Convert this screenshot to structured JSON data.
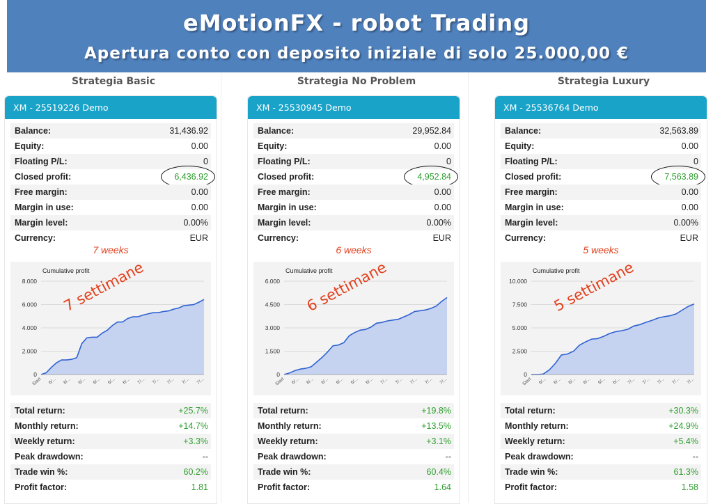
{
  "banner": {
    "title": "eMotionFX - robot Trading",
    "subtitle": "Apertura conto con deposito iniziale di solo 25.000,00 €"
  },
  "colors": {
    "banner": "#4f81bd",
    "header": "#1aa3c9",
    "green": "#2e9e2e",
    "annotation": "#e2401d",
    "area": "#c6d3f0",
    "line": "#2f62d1"
  },
  "labels": {
    "balance": "Balance:",
    "equity": "Equity:",
    "floating": "Floating P/L:",
    "closed": "Closed profit:",
    "free_margin": "Free margin:",
    "margin_in_use": "Margin in use:",
    "margin_level": "Margin level:",
    "currency": "Currency:",
    "total_return": "Total return:",
    "monthly_return": "Monthly return:",
    "weekly_return": "Weekly return:",
    "peak_drawdown": "Peak drawdown:",
    "trade_win": "Trade win %:",
    "profit_factor": "Profit factor:"
  },
  "strategies": [
    {
      "name": "Strategia Basic",
      "account": "XM - 25519226 Demo",
      "balance": "31,436.92",
      "equity": "0.00",
      "floating": "0",
      "closed": "6,436.92",
      "free_margin": "0.00",
      "margin_in_use": "0.00",
      "margin_level": "0.00%",
      "currency": "EUR",
      "weeks": "7 weeks",
      "settimane": "7 settimane",
      "total_return": "+25.7%",
      "monthly_return": "+14.7%",
      "weekly_return": "+3.3%",
      "peak_drawdown": "--",
      "trade_win": "60.2%",
      "profit_factor": "1.81"
    },
    {
      "name": "Strategia No Problem",
      "account": "XM - 25530945 Demo",
      "balance": "29,952.84",
      "equity": "0.00",
      "floating": "0",
      "closed": "4,952.84",
      "free_margin": "0.00",
      "margin_in_use": "0.00",
      "margin_level": "0.00%",
      "currency": "EUR",
      "weeks": "6 weeks",
      "settimane": "6 settimane",
      "total_return": "+19.8%",
      "monthly_return": "+13.5%",
      "weekly_return": "+3.1%",
      "peak_drawdown": "--",
      "trade_win": "60.4%",
      "profit_factor": "1.64"
    },
    {
      "name": "Strategia Luxury",
      "account": "XM - 25536764 Demo",
      "balance": "32,563.89",
      "equity": "0.00",
      "floating": "0",
      "closed": "7,563.89",
      "free_margin": "0.00",
      "margin_in_use": "0.00",
      "margin_level": "0.00%",
      "currency": "EUR",
      "weeks": "5 weeks",
      "settimane": "5 settimane",
      "total_return": "+30.3%",
      "monthly_return": "+24.9%",
      "weekly_return": "+5.4%",
      "peak_drawdown": "--",
      "trade_win": "61.3%",
      "profit_factor": "1.58"
    }
  ],
  "chart_data": [
    {
      "type": "area",
      "title": "Cumulative profit",
      "ylim": [
        0,
        8000
      ],
      "yticks": [
        "0",
        "2.000",
        "4.000",
        "6.000",
        "8.000"
      ],
      "xticks": [
        "Start",
        "6/...",
        "6/...",
        "6/...",
        "6/...",
        "6/...",
        "6/...",
        "7/...",
        "7/...",
        "7/...",
        "7/...",
        "7/..."
      ],
      "values": [
        0,
        150,
        600,
        1000,
        1250,
        1250,
        1300,
        1450,
        2650,
        3150,
        3200,
        3200,
        3550,
        3800,
        4200,
        4500,
        4500,
        4800,
        4950,
        4950,
        5100,
        5200,
        5300,
        5300,
        5400,
        5450,
        5600,
        5700,
        5900,
        5950,
        6000,
        6200,
        6437
      ]
    },
    {
      "type": "area",
      "title": "Cumulative profit",
      "ylim": [
        0,
        6000
      ],
      "yticks": [
        "0",
        "1.500",
        "3.000",
        "4.500",
        "6.000"
      ],
      "xticks": [
        "Start",
        "6/...",
        "6/...",
        "6/...",
        "6/...",
        "6/...",
        "6/...",
        "7/...",
        "7/...",
        "7/...",
        "7/...",
        "7/..."
      ],
      "values": [
        0,
        100,
        250,
        350,
        400,
        500,
        800,
        1100,
        1450,
        1850,
        1900,
        2050,
        2500,
        2700,
        2850,
        2900,
        3050,
        3300,
        3350,
        3450,
        3500,
        3550,
        3700,
        3850,
        4050,
        4100,
        4150,
        4250,
        4400,
        4700,
        4953
      ]
    },
    {
      "type": "area",
      "title": "Cumulative profit",
      "ylim": [
        0,
        10000
      ],
      "yticks": [
        "0",
        "2.500",
        "5.000",
        "7.500",
        "10.000"
      ],
      "xticks": [
        "Start",
        "6/...",
        "6/...",
        "6/...",
        "6/...",
        "6/...",
        "6/...",
        "7/...",
        "7/...",
        "7/...",
        "7/...",
        "7/..."
      ],
      "values": [
        0,
        0,
        50,
        500,
        1200,
        2100,
        2200,
        2500,
        3150,
        3500,
        3800,
        3850,
        4100,
        4400,
        4600,
        4700,
        4850,
        5200,
        5350,
        5600,
        5800,
        6050,
        6200,
        6300,
        6500,
        6900,
        7300,
        7564
      ]
    }
  ]
}
